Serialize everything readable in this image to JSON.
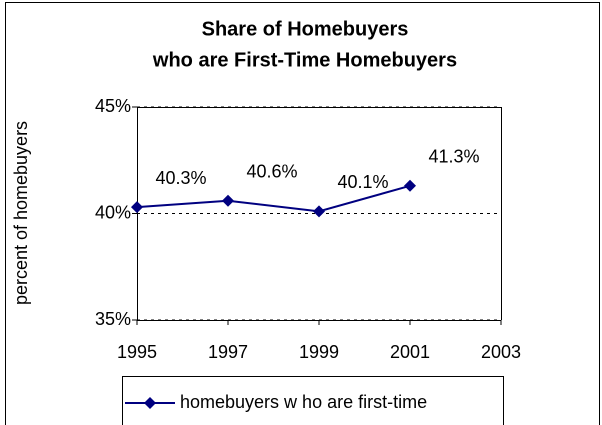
{
  "chart_data": {
    "type": "line",
    "title": [
      "Share of Homebuyers",
      "who are First-Time Homebuyers"
    ],
    "ylabel": "percent of homebuyers",
    "x": [
      1995,
      1997,
      1999,
      2001
    ],
    "series": [
      {
        "name": "homebuyers w ho are first-time",
        "color": "#000080",
        "values": [
          40.3,
          40.6,
          40.1,
          41.3
        ],
        "value_labels": [
          "40.3%",
          "40.6%",
          "40.1%",
          "41.3%"
        ]
      }
    ],
    "xlim": [
      1995,
      2003
    ],
    "xticks": [
      1995,
      1997,
      1999,
      2001,
      2003
    ],
    "ylim": [
      35,
      45
    ],
    "yticks": [
      {
        "value": 35,
        "label": "35%"
      },
      {
        "value": 40,
        "label": "40%"
      },
      {
        "value": 45,
        "label": "45%"
      }
    ],
    "grid": true,
    "legend": "bottom"
  }
}
